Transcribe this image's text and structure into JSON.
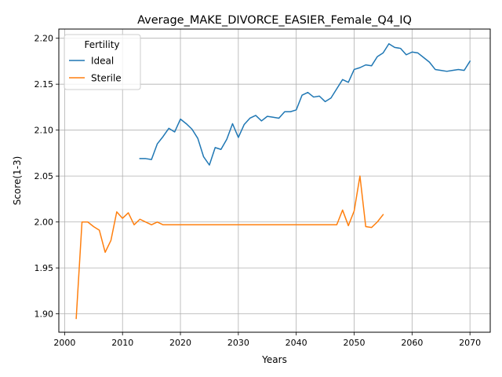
{
  "chart_data": {
    "type": "line",
    "title": "Average_MAKE_DIVORCE_EASIER_Female_Q4_IQ",
    "xlabel": "Years",
    "ylabel": "Score(1-3)",
    "xlim": [
      1999,
      2073.5
    ],
    "ylim": [
      1.88,
      2.21
    ],
    "xticks": [
      2000,
      2010,
      2020,
      2030,
      2040,
      2050,
      2060,
      2070
    ],
    "xtick_labels": [
      "2000",
      "2010",
      "2020",
      "2030",
      "2040",
      "2050",
      "2060",
      "2070"
    ],
    "yticks": [
      1.9,
      1.95,
      2.0,
      2.05,
      2.1,
      2.15,
      2.2
    ],
    "ytick_labels": [
      "1.90",
      "1.95",
      "2.00",
      "2.05",
      "2.10",
      "2.15",
      "2.20"
    ],
    "grid": true,
    "legend": {
      "title": "Fertility",
      "placement": "upper-left"
    },
    "series": [
      {
        "name": "Ideal",
        "color": "#1f77b4",
        "x": [
          2013,
          2014,
          2015,
          2016,
          2017,
          2018,
          2019,
          2020,
          2021,
          2022,
          2023,
          2024,
          2025,
          2026,
          2027,
          2028,
          2029,
          2030,
          2031,
          2032,
          2033,
          2034,
          2035,
          2036,
          2037,
          2038,
          2039,
          2040,
          2041,
          2042,
          2043,
          2044,
          2045,
          2046,
          2047,
          2048,
          2049,
          2050,
          2051,
          2052,
          2053,
          2054,
          2055,
          2056,
          2057,
          2058,
          2059,
          2060,
          2061,
          2062,
          2063,
          2064,
          2065,
          2066,
          2067,
          2068,
          2069,
          2070
        ],
        "y": [
          2.069,
          2.069,
          2.068,
          2.085,
          2.093,
          2.102,
          2.098,
          2.112,
          2.107,
          2.101,
          2.091,
          2.071,
          2.062,
          2.081,
          2.079,
          2.09,
          2.107,
          2.092,
          2.106,
          2.113,
          2.116,
          2.11,
          2.115,
          2.114,
          2.113,
          2.12,
          2.12,
          2.122,
          2.138,
          2.141,
          2.136,
          2.137,
          2.131,
          2.135,
          2.145,
          2.155,
          2.152,
          2.166,
          2.168,
          2.171,
          2.17,
          2.18,
          2.184,
          2.194,
          2.19,
          2.189,
          2.182,
          2.185,
          2.184,
          2.179,
          2.174,
          2.166,
          2.165,
          2.164,
          2.165,
          2.166,
          2.165,
          2.175
        ]
      },
      {
        "name": "Sterile",
        "color": "#ff7f0e",
        "x": [
          2002,
          2003,
          2004,
          2005,
          2006,
          2007,
          2008,
          2009,
          2010,
          2011,
          2012,
          2013,
          2014,
          2015,
          2016,
          2017,
          2018,
          2019,
          2020,
          2021,
          2022,
          2023,
          2024,
          2025,
          2026,
          2027,
          2028,
          2029,
          2030,
          2031,
          2032,
          2033,
          2034,
          2035,
          2036,
          2037,
          2038,
          2039,
          2040,
          2041,
          2042,
          2043,
          2044,
          2045,
          2046,
          2047,
          2048,
          2049,
          2050,
          2051,
          2052,
          2053,
          2054,
          2055
        ],
        "y": [
          1.895,
          2.0,
          2.0,
          1.995,
          1.991,
          1.967,
          1.98,
          2.011,
          2.004,
          2.01,
          1.997,
          2.003,
          2.0,
          1.997,
          2.0,
          1.997,
          1.997,
          1.997,
          1.997,
          1.997,
          1.997,
          1.997,
          1.997,
          1.997,
          1.997,
          1.997,
          1.997,
          1.997,
          1.997,
          1.997,
          1.997,
          1.997,
          1.997,
          1.997,
          1.997,
          1.997,
          1.997,
          1.997,
          1.997,
          1.997,
          1.997,
          1.997,
          1.997,
          1.997,
          1.997,
          1.997,
          2.013,
          1.996,
          2.012,
          2.05,
          1.995,
          1.994,
          2.0,
          2.008
        ]
      }
    ]
  }
}
